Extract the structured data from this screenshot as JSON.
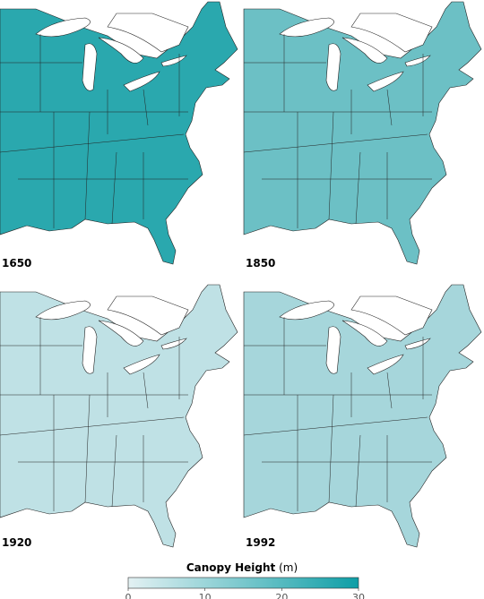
{
  "panels": [
    {
      "label": "1650"
    },
    {
      "label": "1850"
    },
    {
      "label": "1920"
    },
    {
      "label": "1992"
    }
  ],
  "legend": {
    "title": "Canopy Height",
    "unit": "(m)",
    "range": [
      0,
      30
    ],
    "ticks": [
      0,
      10,
      20,
      30
    ],
    "colors": [
      "#e3f1f3",
      "#0e9ea6"
    ]
  }
}
